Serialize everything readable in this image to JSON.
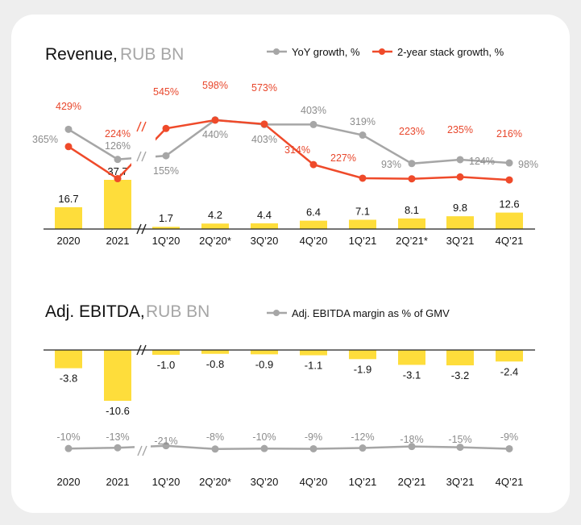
{
  "colors": {
    "bar": "#fedd3b",
    "yoy": "#a6a6a6",
    "stack": "#ef4a2a",
    "margin": "#a6a6a6",
    "axis": "#222222"
  },
  "chart_data": [
    {
      "type": "bar+line",
      "title": "Revenue,",
      "unit": "RUB BN",
      "categories": [
        "2020",
        "2021",
        "1Q’20",
        "2Q’20*",
        "3Q’20",
        "4Q’20",
        "1Q’21",
        "2Q’21*",
        "3Q’21",
        "4Q’21"
      ],
      "values": [
        16.7,
        37.7,
        1.7,
        4.2,
        4.4,
        6.4,
        7.1,
        8.1,
        9.8,
        12.6
      ],
      "series": [
        {
          "name": "YoY growth, %",
          "values": [
            365,
            126,
            155,
            440,
            403,
            403,
            319,
            93,
            124,
            98
          ],
          "labels": [
            "365%",
            "126%",
            "155%",
            "440%",
            "403%",
            "403%",
            "319%",
            "93%",
            "124%",
            "98%"
          ]
        },
        {
          "name": "2-year stack growth, %",
          "values": [
            429,
            224,
            545,
            598,
            573,
            314,
            227,
            223,
            235,
            216
          ],
          "labels": [
            "429%",
            "224%",
            "545%",
            "598%",
            "573%",
            "314%",
            "227%",
            "223%",
            "235%",
            "216%"
          ]
        }
      ],
      "axis_break_after": "2021"
    },
    {
      "type": "bar+line",
      "title": "Adj. EBITDA,",
      "unit": "RUB BN",
      "categories": [
        "2020",
        "2021",
        "1Q’20",
        "2Q’20*",
        "3Q’20",
        "4Q’20",
        "1Q’21",
        "2Q’21",
        "3Q’21",
        "4Q’21"
      ],
      "values": [
        -3.8,
        -10.6,
        -1.0,
        -0.8,
        -0.9,
        -1.1,
        -1.9,
        -3.1,
        -3.2,
        -2.4
      ],
      "value_labels": [
        "-3.8",
        "-10.6",
        "-1.0",
        "-0.8",
        "-0.9",
        "-1.1",
        "-1.9",
        "-3.1",
        "-3.2",
        "-2.4"
      ],
      "series": [
        {
          "name": "Adj. EBITDA margin as % of GMV",
          "values": [
            -10,
            -13,
            -21,
            -8,
            -10,
            -9,
            -12,
            -18,
            -15,
            -9
          ],
          "labels": [
            "-10%",
            "-13%",
            "-21%",
            "-8%",
            "-10%",
            "-9%",
            "-12%",
            "-18%",
            "-15%",
            "-9%"
          ]
        }
      ],
      "axis_break_after": "2021"
    }
  ]
}
